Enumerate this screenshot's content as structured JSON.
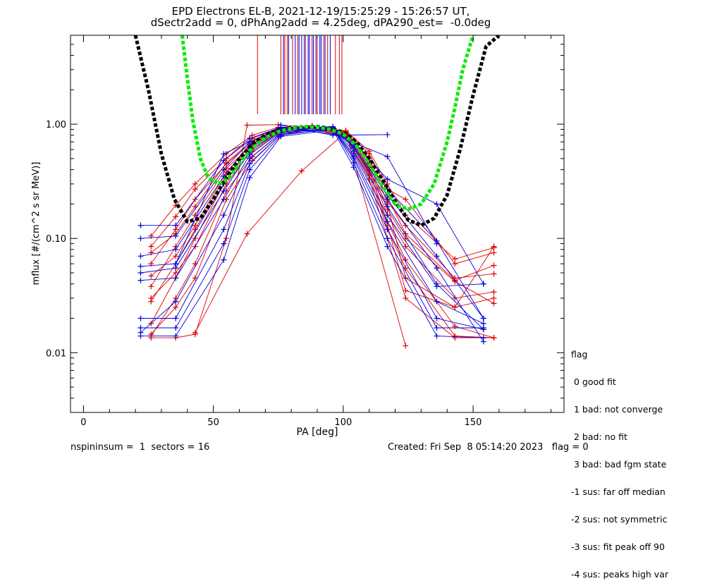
{
  "title": {
    "line1": "EPD Electrons EL-B, 2021-12-19/15:25:29 - 15:26:57 UT,",
    "line2": "dSectr2add = 0, dPhAng2add = 4.25deg, dPA290_est=  -0.0deg"
  },
  "footer": {
    "left": "nspininsum =  1  sectors = 16",
    "right": "Created: Fri Sep  8 05:14:20 2023   flag = 0"
  },
  "legend": {
    "title": "flag",
    "items": [
      " 0 good fit",
      " 1 bad: not converge",
      " 2 bad: no fit",
      " 3 bad: bad fgm state",
      "-1 sus: far off median",
      "-2 sus: not symmetric",
      "-3 sus: fit peak off 90",
      "-4 sus: peaks high var"
    ]
  },
  "colors": {
    "red": "#dd0000",
    "blue": "#0000dd",
    "black_fit": "#000000",
    "green_fit": "#00ee00",
    "axis": "#000000"
  },
  "chart_data": {
    "type": "line",
    "xlabel": "PA [deg]",
    "ylabel": "mflux [#/(cm^2 s sr MeV)]",
    "xlim": [
      -5,
      185
    ],
    "ylim": [
      0.003,
      6
    ],
    "yscale": "log",
    "xticks": [
      0,
      50,
      100,
      150
    ],
    "xticklabels": [
      "0",
      "50",
      "100",
      "150"
    ],
    "yticks": [
      0.01,
      0.1,
      1.0
    ],
    "yticklabels": [
      "0.01",
      "0.10",
      "1.00"
    ],
    "peak_markers": [
      {
        "x": 67.0,
        "color": "red"
      },
      {
        "x": 76.0,
        "color": "red"
      },
      {
        "x": 77.0,
        "color": "blue"
      },
      {
        "x": 77.5,
        "color": "red"
      },
      {
        "x": 78.5,
        "color": "red"
      },
      {
        "x": 79.0,
        "color": "blue"
      },
      {
        "x": 80.5,
        "color": "red"
      },
      {
        "x": 81.5,
        "color": "blue"
      },
      {
        "x": 82.5,
        "color": "red"
      },
      {
        "x": 83.0,
        "color": "blue"
      },
      {
        "x": 84.0,
        "color": "blue"
      },
      {
        "x": 85.0,
        "color": "blue"
      },
      {
        "x": 85.5,
        "color": "red"
      },
      {
        "x": 86.5,
        "color": "blue"
      },
      {
        "x": 87.0,
        "color": "blue"
      },
      {
        "x": 88.0,
        "color": "red"
      },
      {
        "x": 88.5,
        "color": "blue"
      },
      {
        "x": 89.5,
        "color": "blue"
      },
      {
        "x": 90.0,
        "color": "red"
      },
      {
        "x": 91.0,
        "color": "blue"
      },
      {
        "x": 91.5,
        "color": "blue"
      },
      {
        "x": 92.5,
        "color": "red"
      },
      {
        "x": 93.0,
        "color": "blue"
      },
      {
        "x": 94.0,
        "color": "red"
      },
      {
        "x": 95.0,
        "color": "blue"
      },
      {
        "x": 97.0,
        "color": "red"
      },
      {
        "x": 98.5,
        "color": "red"
      },
      {
        "x": 99.5,
        "color": "red"
      }
    ],
    "series": [
      {
        "color": "red",
        "x": [
          26,
          35.5,
          43,
          55,
          65,
          75,
          88,
          101,
          110,
          117,
          124,
          143,
          158
        ],
        "y": [
          0.085,
          0.155,
          0.27,
          0.5,
          0.75,
          0.92,
          0.93,
          0.86,
          0.55,
          0.27,
          0.22,
          0.06,
          0.075
        ]
      },
      {
        "color": "red",
        "x": [
          26,
          35.5,
          43,
          55,
          65,
          75,
          88,
          101,
          110,
          117,
          124,
          143,
          158
        ],
        "y": [
          0.06,
          0.12,
          0.22,
          0.45,
          0.7,
          0.9,
          0.95,
          0.84,
          0.48,
          0.21,
          0.13,
          0.045,
          0.049
        ]
      },
      {
        "color": "red",
        "x": [
          26,
          35.5,
          43,
          55,
          65,
          75,
          88,
          101,
          110,
          117,
          124,
          143,
          158
        ],
        "y": [
          0.028,
          0.06,
          0.12,
          0.36,
          0.62,
          0.86,
          0.94,
          0.8,
          0.42,
          0.16,
          0.085,
          0.03,
          0.034
        ]
      },
      {
        "color": "red",
        "x": [
          26,
          35.5,
          43,
          55,
          65,
          75,
          88,
          101,
          110,
          117,
          124,
          143,
          158
        ],
        "y": [
          0.038,
          0.085,
          0.16,
          0.41,
          0.66,
          0.88,
          0.96,
          0.83,
          0.45,
          0.18,
          0.1,
          0.042,
          0.027
        ]
      },
      {
        "color": "red",
        "x": [
          26,
          35.5,
          43,
          55,
          65,
          75,
          88,
          101,
          110,
          117,
          124,
          143,
          158
        ],
        "y": [
          0.105,
          0.195,
          0.3,
          0.55,
          0.8,
          0.94,
          0.92,
          0.88,
          0.58,
          0.3,
          0.16,
          0.066,
          0.083
        ]
      },
      {
        "color": "red",
        "x": [
          26,
          35.5,
          43,
          55,
          65,
          75,
          88,
          101,
          110,
          117,
          124,
          143,
          158
        ],
        "y": [
          0.014,
          0.03,
          0.06,
          0.26,
          0.52,
          0.8,
          0.93,
          0.78,
          0.36,
          0.12,
          0.055,
          0.014,
          0.0135
        ]
      },
      {
        "color": "red",
        "x": [
          26,
          35.5,
          43,
          55,
          65,
          75,
          88,
          101,
          110,
          117,
          124,
          143,
          158
        ],
        "y": [
          0.0145,
          0.025,
          0.045,
          0.22,
          0.48,
          0.78,
          0.92,
          0.76,
          0.33,
          0.1,
          0.03,
          0.0135,
          0.0135
        ]
      },
      {
        "color": "red",
        "x": [
          26,
          35.5,
          43,
          55,
          65,
          75,
          88,
          101,
          110,
          117,
          124,
          143,
          158
        ],
        "y": [
          0.075,
          0.11,
          0.19,
          0.46,
          0.72,
          0.91,
          0.97,
          0.85,
          0.5,
          0.23,
          0.11,
          0.043,
          0.058
        ]
      },
      {
        "color": "red",
        "x": [
          43,
          63,
          84,
          101,
          124
        ],
        "y": [
          0.015,
          0.11,
          0.39,
          0.85,
          0.0115
        ]
      },
      {
        "color": "red",
        "x": [
          26,
          35.5,
          43,
          55,
          63,
          75,
          88
        ],
        "y": [
          0.0135,
          0.0135,
          0.0145,
          0.1,
          0.98,
          0.99,
          0.93
        ]
      },
      {
        "color": "red",
        "x": [
          26,
          35.5,
          43,
          55,
          65,
          75,
          88,
          101,
          117,
          124,
          143,
          158
        ],
        "y": [
          0.047,
          0.07,
          0.13,
          0.38,
          0.68,
          0.89,
          0.95,
          0.82,
          0.2,
          0.045,
          0.025,
          0.085
        ]
      },
      {
        "color": "red",
        "x": [
          26,
          35.5,
          43,
          55,
          65,
          75,
          88,
          101,
          110,
          117,
          124,
          143,
          158
        ],
        "y": [
          0.018,
          0.045,
          0.1,
          0.33,
          0.58,
          0.84,
          0.92,
          0.79,
          0.39,
          0.14,
          0.065,
          0.017,
          0.0135
        ]
      },
      {
        "color": "red",
        "x": [
          26,
          35.5,
          43,
          55,
          65,
          75,
          88,
          101,
          110,
          117,
          124,
          143,
          158
        ],
        "y": [
          0.03,
          0.05,
          0.085,
          0.3,
          0.6,
          0.86,
          0.95,
          0.81,
          0.4,
          0.13,
          0.035,
          0.025,
          0.03
        ]
      },
      {
        "color": "blue",
        "x": [
          22,
          35.5,
          54,
          64,
          76,
          96,
          104,
          117,
          136,
          154
        ],
        "y": [
          0.13,
          0.13,
          0.48,
          0.75,
          0.94,
          0.93,
          0.7,
          0.33,
          0.2,
          0.04
        ]
      },
      {
        "color": "blue",
        "x": [
          22,
          35.5,
          54,
          64,
          76,
          96,
          104,
          117,
          136,
          154
        ],
        "y": [
          0.1,
          0.105,
          0.4,
          0.7,
          0.92,
          0.95,
          0.66,
          0.27,
          0.095,
          0.02
        ]
      },
      {
        "color": "blue",
        "x": [
          22,
          35.5,
          54,
          64,
          76,
          96,
          104,
          117,
          136,
          154
        ],
        "y": [
          0.057,
          0.06,
          0.3,
          0.62,
          0.9,
          0.94,
          0.62,
          0.22,
          0.055,
          0.0125
        ]
      },
      {
        "color": "blue",
        "x": [
          22,
          35.5,
          54,
          64,
          76,
          96,
          104,
          117,
          136,
          154
        ],
        "y": [
          0.05,
          0.055,
          0.26,
          0.58,
          0.88,
          0.93,
          0.58,
          0.19,
          0.04,
          0.016
        ]
      },
      {
        "color": "blue",
        "x": [
          22,
          35.5,
          54,
          64,
          76,
          96,
          104,
          117,
          136,
          154
        ],
        "y": [
          0.043,
          0.045,
          0.22,
          0.54,
          0.86,
          0.91,
          0.55,
          0.16,
          0.038,
          0.04
        ]
      },
      {
        "color": "blue",
        "x": [
          22,
          35.5,
          54,
          64,
          76,
          96,
          104,
          117,
          136,
          154
        ],
        "y": [
          0.02,
          0.02,
          0.12,
          0.45,
          0.82,
          0.9,
          0.5,
          0.12,
          0.02,
          0.016
        ]
      },
      {
        "color": "blue",
        "x": [
          22,
          35.5,
          54,
          64,
          76,
          96,
          104,
          117,
          136,
          154
        ],
        "y": [
          0.0165,
          0.0165,
          0.09,
          0.4,
          0.8,
          0.92,
          0.46,
          0.1,
          0.0165,
          0.0165
        ]
      },
      {
        "color": "blue",
        "x": [
          22,
          35.5,
          54,
          64,
          76,
          96,
          104,
          117,
          136,
          154
        ],
        "y": [
          0.014,
          0.014,
          0.065,
          0.34,
          0.78,
          0.89,
          0.42,
          0.085,
          0.014,
          0.0135
        ]
      },
      {
        "color": "blue",
        "x": [
          22,
          35.5,
          54,
          64,
          76,
          96,
          104,
          117,
          136,
          154
        ],
        "y": [
          0.015,
          0.028,
          0.16,
          0.5,
          0.84,
          0.92,
          0.52,
          0.14,
          0.028,
          0.018
        ]
      },
      {
        "color": "blue",
        "x": [
          22,
          35.5,
          54,
          64,
          76,
          96,
          104,
          117,
          136,
          154
        ],
        "y": [
          0.07,
          0.08,
          0.35,
          0.66,
          0.89,
          0.94,
          0.64,
          0.24,
          0.07,
          0.02
        ]
      },
      {
        "color": "blue",
        "x": [
          35.5,
          54,
          76,
          96,
          117,
          136
        ],
        "y": [
          0.06,
          0.55,
          0.93,
          0.82,
          0.52,
          0.09
        ]
      },
      {
        "color": "blue",
        "x": [
          76,
          96,
          117
        ],
        "y": [
          0.98,
          0.8,
          0.81
        ]
      }
    ],
    "fits": [
      {
        "color": "black",
        "x": [
          20,
          25,
          30,
          35,
          40,
          45,
          50,
          55,
          60,
          65,
          70,
          75,
          80,
          85,
          90,
          95,
          100,
          105,
          110,
          115,
          120,
          125,
          130,
          135,
          140,
          145,
          150,
          155,
          160
        ],
        "y": [
          6.0,
          2.0,
          0.55,
          0.22,
          0.14,
          0.15,
          0.22,
          0.34,
          0.5,
          0.67,
          0.8,
          0.88,
          0.93,
          0.95,
          0.95,
          0.92,
          0.85,
          0.7,
          0.5,
          0.33,
          0.21,
          0.145,
          0.13,
          0.15,
          0.24,
          0.6,
          1.8,
          4.8,
          6.0
        ]
      },
      {
        "color": "green",
        "x": [
          38,
          40,
          42,
          45,
          48,
          52,
          56,
          60,
          65,
          70,
          75,
          80,
          85,
          90,
          95,
          100,
          105,
          110,
          115,
          120,
          125,
          130,
          135,
          140,
          143,
          146,
          150
        ],
        "y": [
          6.0,
          2.5,
          1.1,
          0.5,
          0.34,
          0.3,
          0.34,
          0.45,
          0.62,
          0.76,
          0.86,
          0.92,
          0.95,
          0.94,
          0.9,
          0.82,
          0.65,
          0.45,
          0.29,
          0.2,
          0.18,
          0.2,
          0.3,
          0.7,
          1.4,
          3.0,
          6.0
        ]
      }
    ]
  }
}
